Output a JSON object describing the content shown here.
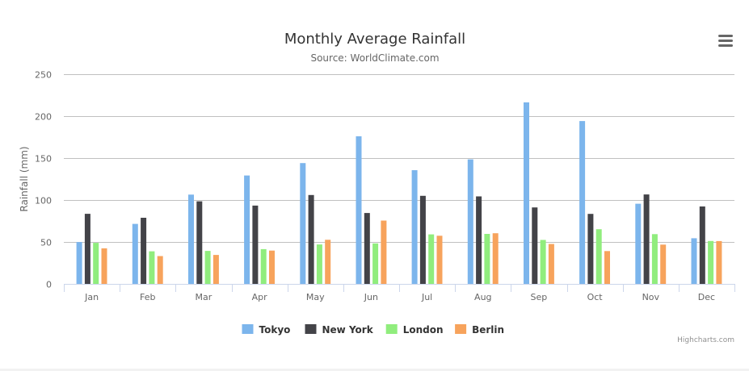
{
  "chart_data": {
    "type": "bar",
    "title": "Monthly Average Rainfall",
    "subtitle": "Source: WorldClimate.com",
    "xlabel": "",
    "ylabel": "Rainfall (mm)",
    "ylim": [
      0,
      250
    ],
    "yticks": [
      0,
      50,
      100,
      150,
      200,
      250
    ],
    "grid": true,
    "legend_position": "bottom-center",
    "categories": [
      "Jan",
      "Feb",
      "Mar",
      "Apr",
      "May",
      "Jun",
      "Jul",
      "Aug",
      "Sep",
      "Oct",
      "Nov",
      "Dec"
    ],
    "series": [
      {
        "name": "Tokyo",
        "color": "#7cb5ec",
        "values": [
          49.9,
          71.5,
          106.4,
          129.2,
          144.0,
          176.0,
          135.6,
          148.5,
          216.4,
          194.1,
          95.6,
          54.4
        ]
      },
      {
        "name": "New York",
        "color": "#434348",
        "values": [
          83.6,
          78.8,
          98.5,
          93.4,
          106.0,
          84.5,
          105.0,
          104.3,
          91.2,
          83.5,
          106.6,
          92.3
        ]
      },
      {
        "name": "London",
        "color": "#90ed7d",
        "values": [
          48.9,
          38.8,
          39.3,
          41.4,
          47.0,
          48.3,
          59.0,
          59.6,
          52.4,
          65.2,
          59.3,
          51.2
        ]
      },
      {
        "name": "Berlin",
        "color": "#f7a35c",
        "values": [
          42.4,
          33.2,
          34.5,
          39.7,
          52.6,
          75.5,
          57.4,
          60.4,
          47.6,
          39.1,
          46.8,
          51.1
        ]
      }
    ]
  },
  "menu": {
    "icon": "hamburger-menu-icon"
  },
  "credits": "Highcharts.com"
}
